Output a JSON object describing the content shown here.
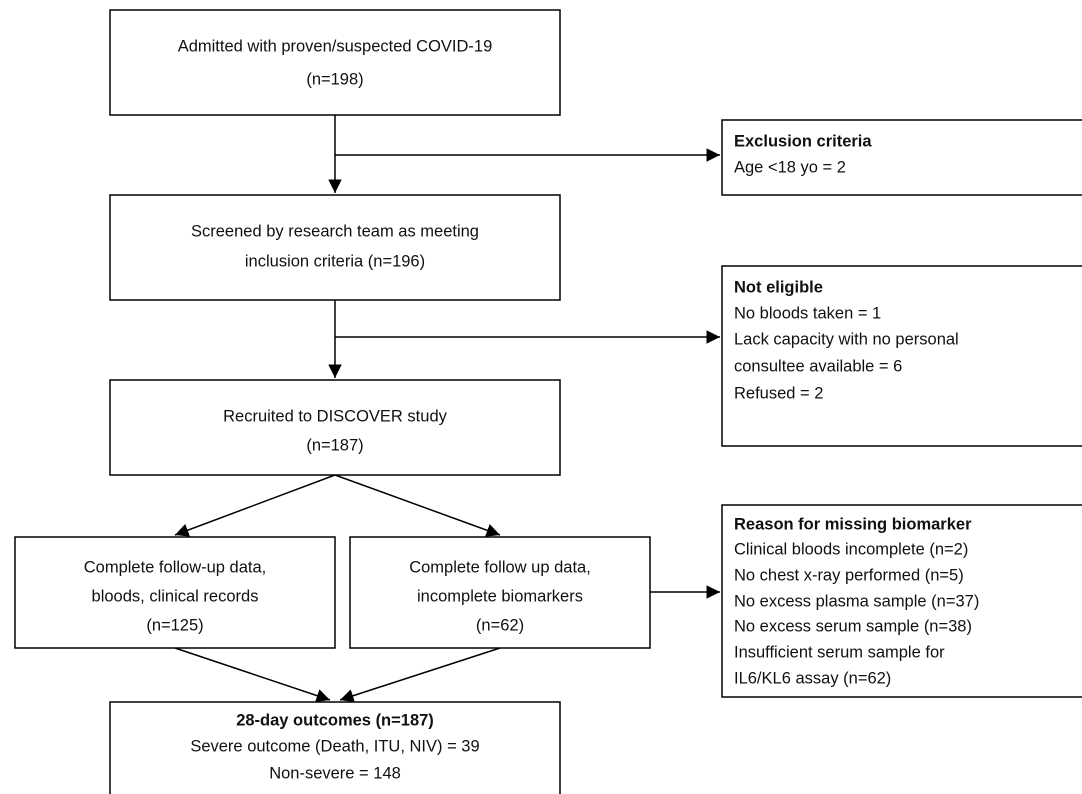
{
  "nodes": [
    {
      "lines": [
        "Admitted with proven/suspected COVID-19",
        "(n=198)"
      ]
    },
    {
      "title": "Exclusion criteria",
      "lines": [
        "Age <18 yo = 2"
      ]
    },
    {
      "lines": [
        "Screened by research team as meeting",
        "inclusion criteria (n=196)"
      ]
    },
    {
      "title": "Not eligible",
      "lines": [
        "No bloods taken = 1",
        "Lack capacity with no personal",
        "consultee available = 6",
        "Refused = 2"
      ]
    },
    {
      "lines": [
        "Recruited to DISCOVER study",
        "(n=187)"
      ]
    },
    {
      "lines": [
        "Complete follow-up data,",
        "bloods, clinical records",
        "(n=125)"
      ]
    },
    {
      "lines": [
        "Complete follow up data,",
        "incomplete biomarkers",
        "(n=62)"
      ]
    },
    {
      "title": "Reason for missing biomarker",
      "lines": [
        "Clinical bloods incomplete (n=2)",
        "No chest x-ray performed (n=5)",
        "No excess plasma sample (n=37)",
        "No excess serum sample (n=38)",
        "Insufficient serum sample for",
        "IL6/KL6 assay (n=62)"
      ]
    },
    {
      "title": "28-day outcomes (n=187)",
      "lines": [
        "Severe outcome (Death, ITU, NIV) = 39",
        "Non-severe = 148"
      ]
    }
  ]
}
